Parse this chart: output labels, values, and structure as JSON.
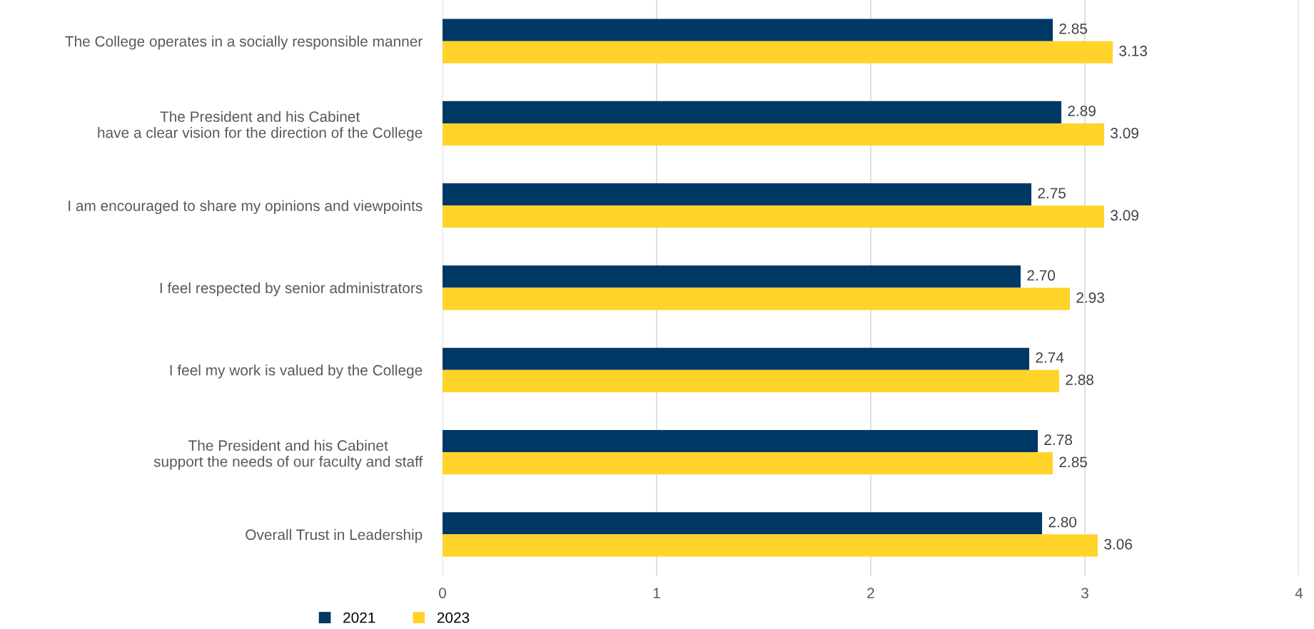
{
  "chart_data": {
    "type": "bar",
    "orientation": "horizontal",
    "categories": [
      "The College operates in a socially responsible manner",
      "The President and his Cabinet\nhave a clear vision for the direction of the College",
      "I am encouraged to share my opinions and viewpoints",
      "I feel respected by senior administrators",
      "I feel my work is valued by the College",
      "The President and his Cabinet\nsupport the needs of our faculty and staff",
      "Overall Trust in Leadership"
    ],
    "series": [
      {
        "name": "2021",
        "color": "#003865",
        "values": [
          2.85,
          2.89,
          2.75,
          2.7,
          2.74,
          2.78,
          2.8
        ],
        "value_labels": [
          "2.85",
          "2.89",
          "2.75",
          "2.70",
          "2.74",
          "2.78",
          "2.80"
        ]
      },
      {
        "name": "2023",
        "color": "#ffd32a",
        "values": [
          3.13,
          3.09,
          3.09,
          2.93,
          2.88,
          2.85,
          3.06
        ],
        "value_labels": [
          "3.13",
          "3.09",
          "3.09",
          "2.93",
          "2.88",
          "2.85",
          "3.06"
        ]
      }
    ],
    "xlim": [
      0,
      4
    ],
    "xticks": [
      0,
      1,
      2,
      3,
      4
    ],
    "grid": "x",
    "legend": "bottom left"
  }
}
